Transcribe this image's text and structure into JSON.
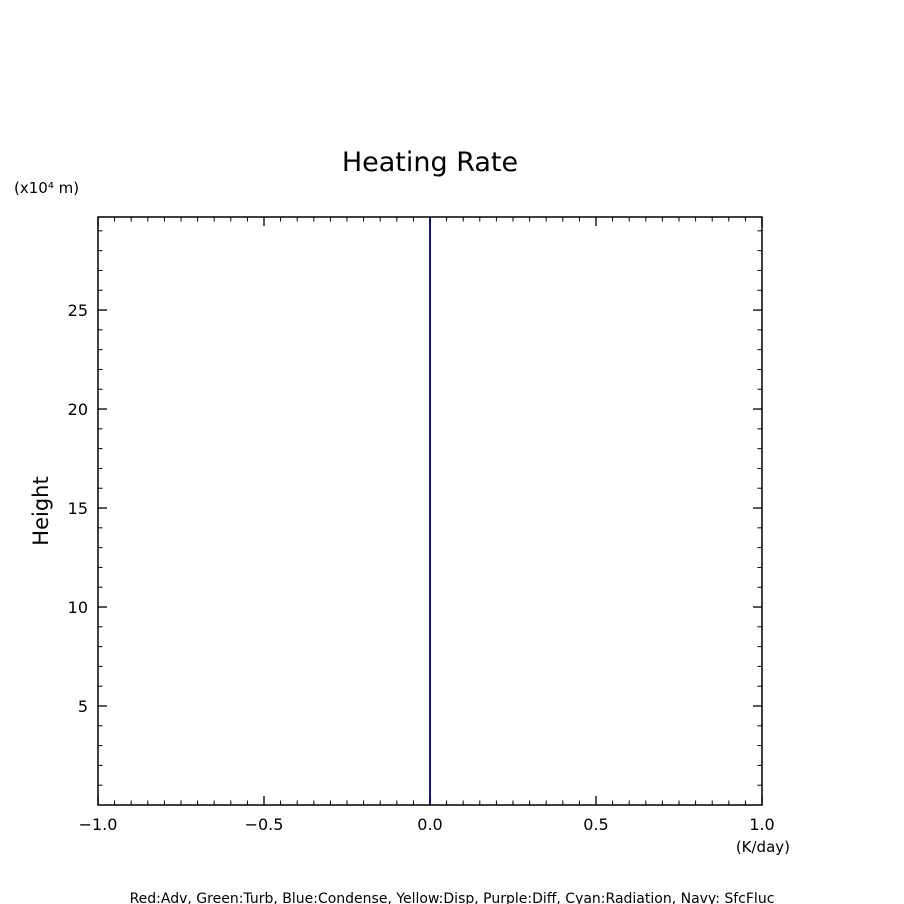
{
  "chart_data": {
    "type": "line",
    "title": "Heating Rate",
    "ylabel": "Height",
    "y_unit_label": "(x10⁴ m)",
    "x_unit_label": "(K/day)",
    "xlim": [
      -1.0,
      1.0
    ],
    "ylim": [
      0,
      29.7
    ],
    "x_ticks": [
      "−1.0",
      "−0.5",
      "0.0",
      "0.5",
      "1.0"
    ],
    "x_tick_values": [
      -1.0,
      -0.5,
      0.0,
      0.5,
      1.0
    ],
    "y_ticks": [
      "5",
      "10",
      "15",
      "20",
      "25"
    ],
    "y_tick_values": [
      5,
      10,
      15,
      20,
      25
    ],
    "grid": false,
    "series": [
      {
        "name": "SfcFluc",
        "color": "#000080",
        "x": [
          0.0,
          0.0
        ],
        "y": [
          0,
          29.7
        ]
      }
    ],
    "legend_note": "Red:Adv, Green:Turb, Blue:Condense, Yellow:Disp, Purple:Diff, Cyan:Radiation, Navy: SfcFluc"
  }
}
